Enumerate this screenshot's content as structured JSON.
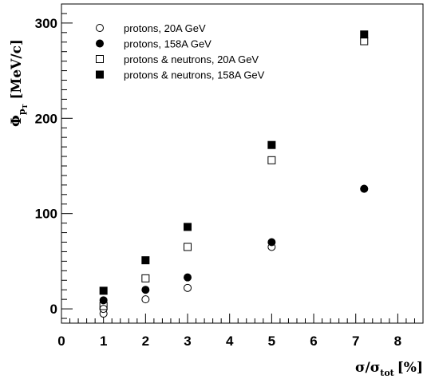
{
  "chart_data": {
    "type": "scatter",
    "xlabel": "σ/σ",
    "xlabel_sub": "tot",
    "xlabel_unit": "[%]",
    "ylabel": "Φ",
    "ylabel_sub": "p",
    "ylabel_subsub": "T",
    "ylabel_unit": "[MeV/c]",
    "xlim": [
      0,
      8.6
    ],
    "ylim": [
      -15,
      320
    ],
    "x_ticks": [
      0,
      1,
      2,
      3,
      4,
      5,
      6,
      7,
      8
    ],
    "y_ticks": [
      0,
      100,
      200,
      300
    ],
    "grid": false,
    "legend_position": "top-left",
    "series": [
      {
        "name": "protons, 20A GeV",
        "marker": "open-circle",
        "x": [
          1,
          1,
          2,
          3,
          5,
          7.2
        ],
        "y": [
          -5,
          0,
          10,
          22,
          65,
          126
        ]
      },
      {
        "name": "protons, 158A GeV",
        "marker": "filled-circle",
        "x": [
          1,
          2,
          3,
          5,
          7.2
        ],
        "y": [
          9,
          20,
          33,
          70,
          126
        ]
      },
      {
        "name": "protons & neutrons, 20A GeV",
        "marker": "open-square",
        "x": [
          1,
          2,
          3,
          5,
          7.2
        ],
        "y": [
          3,
          32,
          65,
          156,
          281
        ]
      },
      {
        "name": "protons & neutrons, 158A GeV",
        "marker": "filled-square",
        "x": [
          1,
          2,
          3,
          5,
          7.2
        ],
        "y": [
          19,
          51,
          86,
          172,
          288
        ]
      }
    ]
  }
}
